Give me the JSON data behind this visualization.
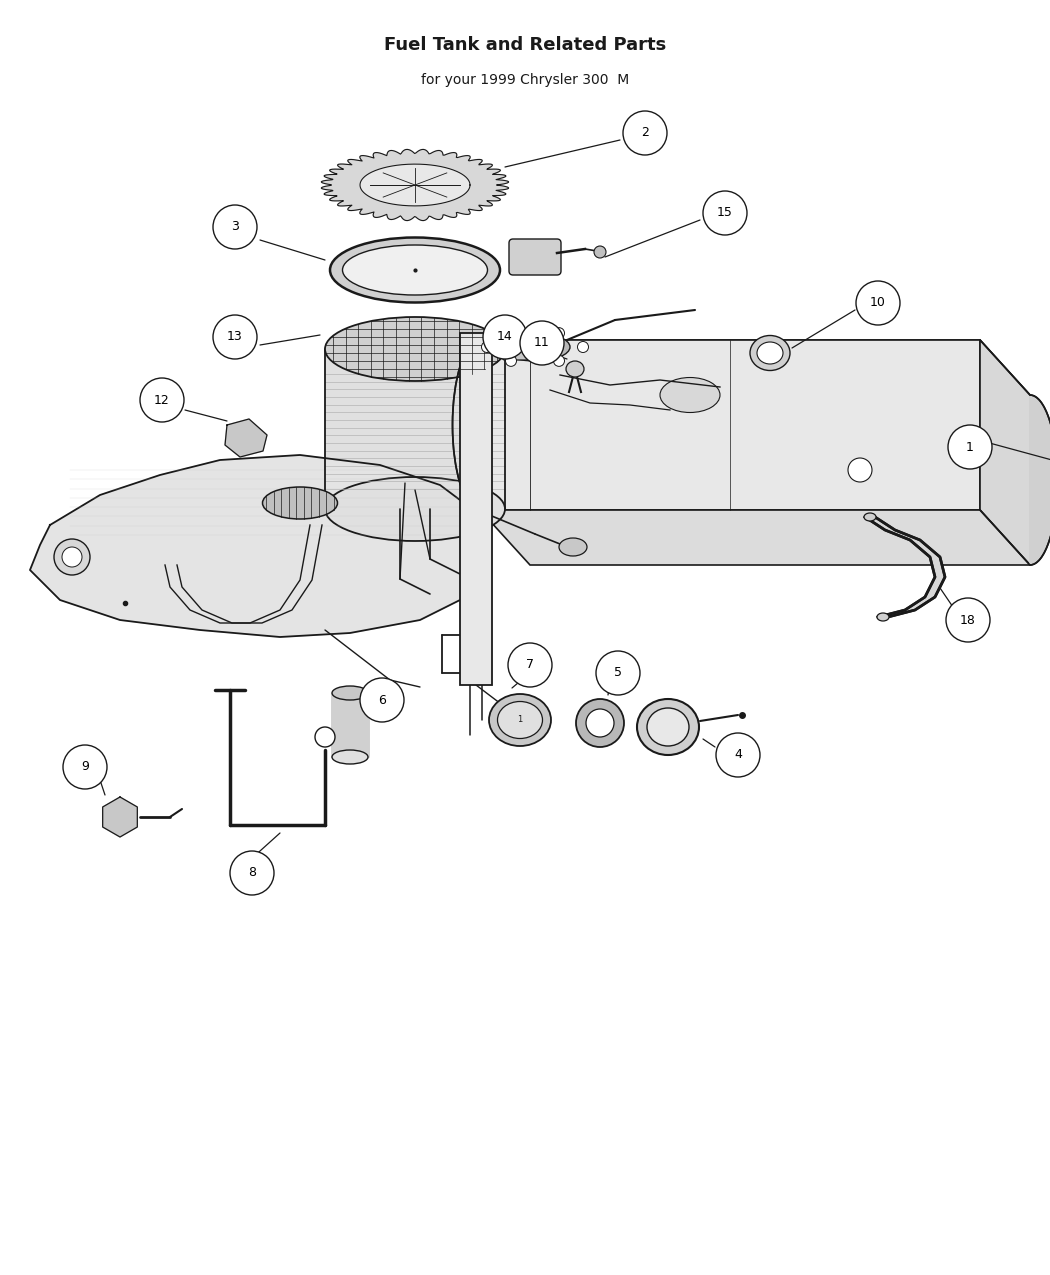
{
  "title": "Fuel Tank and Related Parts",
  "subtitle": "for your 1999 Chrysler 300  M",
  "bg": "#ffffff",
  "lc": "#1a1a1a",
  "figw": 10.5,
  "figh": 12.75,
  "dpi": 100
}
